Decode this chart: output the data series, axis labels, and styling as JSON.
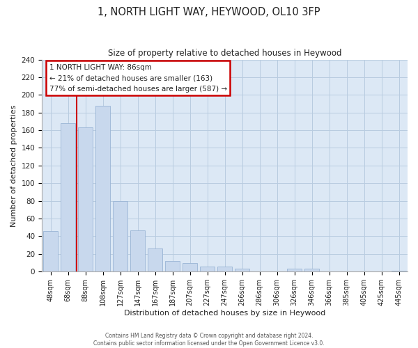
{
  "title": "1, NORTH LIGHT WAY, HEYWOOD, OL10 3FP",
  "subtitle": "Size of property relative to detached houses in Heywood",
  "xlabel": "Distribution of detached houses by size in Heywood",
  "ylabel": "Number of detached properties",
  "bar_labels": [
    "48sqm",
    "68sqm",
    "88sqm",
    "108sqm",
    "127sqm",
    "147sqm",
    "167sqm",
    "187sqm",
    "207sqm",
    "227sqm",
    "247sqm",
    "266sqm",
    "286sqm",
    "306sqm",
    "326sqm",
    "346sqm",
    "366sqm",
    "385sqm",
    "405sqm",
    "425sqm",
    "445sqm"
  ],
  "bar_heights": [
    46,
    168,
    163,
    188,
    80,
    47,
    26,
    12,
    10,
    6,
    6,
    3,
    0,
    0,
    3,
    3,
    0,
    0,
    0,
    0,
    1
  ],
  "bar_color": "#c8d8ed",
  "bar_edge_color": "#9ab5d5",
  "vline_color": "#cc0000",
  "vline_x_index": 1.5,
  "ylim": [
    0,
    240
  ],
  "yticks": [
    0,
    20,
    40,
    60,
    80,
    100,
    120,
    140,
    160,
    180,
    200,
    220,
    240
  ],
  "annotation_title": "1 NORTH LIGHT WAY: 86sqm",
  "annotation_line1": "← 21% of detached houses are smaller (163)",
  "annotation_line2": "77% of semi-detached houses are larger (587) →",
  "annotation_box_color": "#ffffff",
  "annotation_box_edge": "#cc0000",
  "footer_line1": "Contains HM Land Registry data © Crown copyright and database right 2024.",
  "footer_line2": "Contains public sector information licensed under the Open Government Licence v3.0.",
  "background_color": "#ffffff",
  "plot_bg_color": "#dce8f5",
  "grid_color": "#b8cce0"
}
